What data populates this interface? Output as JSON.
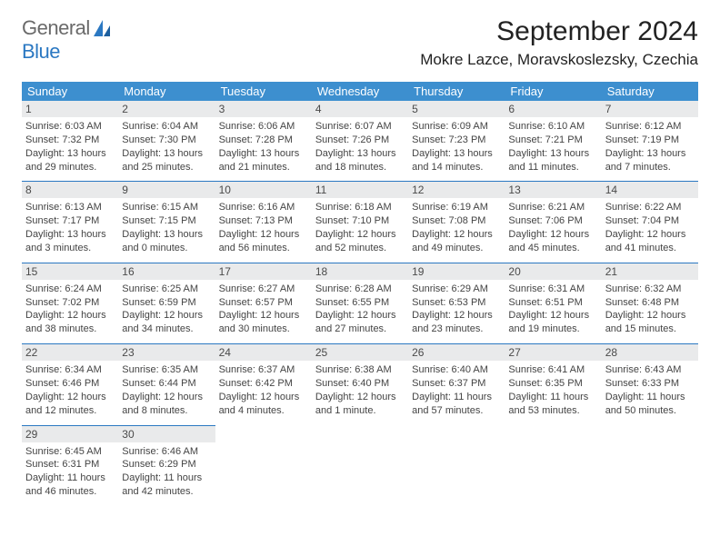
{
  "brand": {
    "part1": "General",
    "part2": "Blue",
    "color1": "#6a6a6a",
    "color2": "#2b78c2"
  },
  "title": "September 2024",
  "location": "Mokre Lazce, Moravskoslezsky, Czechia",
  "day_headers": [
    "Sunday",
    "Monday",
    "Tuesday",
    "Wednesday",
    "Thursday",
    "Friday",
    "Saturday"
  ],
  "style": {
    "header_bg": "#3d8fcf",
    "header_fg": "#ffffff",
    "daynum_bg": "#e9eaeb",
    "border_color": "#2b78c2",
    "title_fontsize": 30,
    "location_fontsize": 17,
    "th_fontsize": 13,
    "cell_fontsize": 11
  },
  "weeks": [
    [
      {
        "n": "1",
        "rise": "Sunrise: 6:03 AM",
        "set": "Sunset: 7:32 PM",
        "d1": "Daylight: 13 hours",
        "d2": "and 29 minutes."
      },
      {
        "n": "2",
        "rise": "Sunrise: 6:04 AM",
        "set": "Sunset: 7:30 PM",
        "d1": "Daylight: 13 hours",
        "d2": "and 25 minutes."
      },
      {
        "n": "3",
        "rise": "Sunrise: 6:06 AM",
        "set": "Sunset: 7:28 PM",
        "d1": "Daylight: 13 hours",
        "d2": "and 21 minutes."
      },
      {
        "n": "4",
        "rise": "Sunrise: 6:07 AM",
        "set": "Sunset: 7:26 PM",
        "d1": "Daylight: 13 hours",
        "d2": "and 18 minutes."
      },
      {
        "n": "5",
        "rise": "Sunrise: 6:09 AM",
        "set": "Sunset: 7:23 PM",
        "d1": "Daylight: 13 hours",
        "d2": "and 14 minutes."
      },
      {
        "n": "6",
        "rise": "Sunrise: 6:10 AM",
        "set": "Sunset: 7:21 PM",
        "d1": "Daylight: 13 hours",
        "d2": "and 11 minutes."
      },
      {
        "n": "7",
        "rise": "Sunrise: 6:12 AM",
        "set": "Sunset: 7:19 PM",
        "d1": "Daylight: 13 hours",
        "d2": "and 7 minutes."
      }
    ],
    [
      {
        "n": "8",
        "rise": "Sunrise: 6:13 AM",
        "set": "Sunset: 7:17 PM",
        "d1": "Daylight: 13 hours",
        "d2": "and 3 minutes."
      },
      {
        "n": "9",
        "rise": "Sunrise: 6:15 AM",
        "set": "Sunset: 7:15 PM",
        "d1": "Daylight: 13 hours",
        "d2": "and 0 minutes."
      },
      {
        "n": "10",
        "rise": "Sunrise: 6:16 AM",
        "set": "Sunset: 7:13 PM",
        "d1": "Daylight: 12 hours",
        "d2": "and 56 minutes."
      },
      {
        "n": "11",
        "rise": "Sunrise: 6:18 AM",
        "set": "Sunset: 7:10 PM",
        "d1": "Daylight: 12 hours",
        "d2": "and 52 minutes."
      },
      {
        "n": "12",
        "rise": "Sunrise: 6:19 AM",
        "set": "Sunset: 7:08 PM",
        "d1": "Daylight: 12 hours",
        "d2": "and 49 minutes."
      },
      {
        "n": "13",
        "rise": "Sunrise: 6:21 AM",
        "set": "Sunset: 7:06 PM",
        "d1": "Daylight: 12 hours",
        "d2": "and 45 minutes."
      },
      {
        "n": "14",
        "rise": "Sunrise: 6:22 AM",
        "set": "Sunset: 7:04 PM",
        "d1": "Daylight: 12 hours",
        "d2": "and 41 minutes."
      }
    ],
    [
      {
        "n": "15",
        "rise": "Sunrise: 6:24 AM",
        "set": "Sunset: 7:02 PM",
        "d1": "Daylight: 12 hours",
        "d2": "and 38 minutes."
      },
      {
        "n": "16",
        "rise": "Sunrise: 6:25 AM",
        "set": "Sunset: 6:59 PM",
        "d1": "Daylight: 12 hours",
        "d2": "and 34 minutes."
      },
      {
        "n": "17",
        "rise": "Sunrise: 6:27 AM",
        "set": "Sunset: 6:57 PM",
        "d1": "Daylight: 12 hours",
        "d2": "and 30 minutes."
      },
      {
        "n": "18",
        "rise": "Sunrise: 6:28 AM",
        "set": "Sunset: 6:55 PM",
        "d1": "Daylight: 12 hours",
        "d2": "and 27 minutes."
      },
      {
        "n": "19",
        "rise": "Sunrise: 6:29 AM",
        "set": "Sunset: 6:53 PM",
        "d1": "Daylight: 12 hours",
        "d2": "and 23 minutes."
      },
      {
        "n": "20",
        "rise": "Sunrise: 6:31 AM",
        "set": "Sunset: 6:51 PM",
        "d1": "Daylight: 12 hours",
        "d2": "and 19 minutes."
      },
      {
        "n": "21",
        "rise": "Sunrise: 6:32 AM",
        "set": "Sunset: 6:48 PM",
        "d1": "Daylight: 12 hours",
        "d2": "and 15 minutes."
      }
    ],
    [
      {
        "n": "22",
        "rise": "Sunrise: 6:34 AM",
        "set": "Sunset: 6:46 PM",
        "d1": "Daylight: 12 hours",
        "d2": "and 12 minutes."
      },
      {
        "n": "23",
        "rise": "Sunrise: 6:35 AM",
        "set": "Sunset: 6:44 PM",
        "d1": "Daylight: 12 hours",
        "d2": "and 8 minutes."
      },
      {
        "n": "24",
        "rise": "Sunrise: 6:37 AM",
        "set": "Sunset: 6:42 PM",
        "d1": "Daylight: 12 hours",
        "d2": "and 4 minutes."
      },
      {
        "n": "25",
        "rise": "Sunrise: 6:38 AM",
        "set": "Sunset: 6:40 PM",
        "d1": "Daylight: 12 hours",
        "d2": "and 1 minute."
      },
      {
        "n": "26",
        "rise": "Sunrise: 6:40 AM",
        "set": "Sunset: 6:37 PM",
        "d1": "Daylight: 11 hours",
        "d2": "and 57 minutes."
      },
      {
        "n": "27",
        "rise": "Sunrise: 6:41 AM",
        "set": "Sunset: 6:35 PM",
        "d1": "Daylight: 11 hours",
        "d2": "and 53 minutes."
      },
      {
        "n": "28",
        "rise": "Sunrise: 6:43 AM",
        "set": "Sunset: 6:33 PM",
        "d1": "Daylight: 11 hours",
        "d2": "and 50 minutes."
      }
    ],
    [
      {
        "n": "29",
        "rise": "Sunrise: 6:45 AM",
        "set": "Sunset: 6:31 PM",
        "d1": "Daylight: 11 hours",
        "d2": "and 46 minutes."
      },
      {
        "n": "30",
        "rise": "Sunrise: 6:46 AM",
        "set": "Sunset: 6:29 PM",
        "d1": "Daylight: 11 hours",
        "d2": "and 42 minutes."
      },
      null,
      null,
      null,
      null,
      null
    ]
  ]
}
